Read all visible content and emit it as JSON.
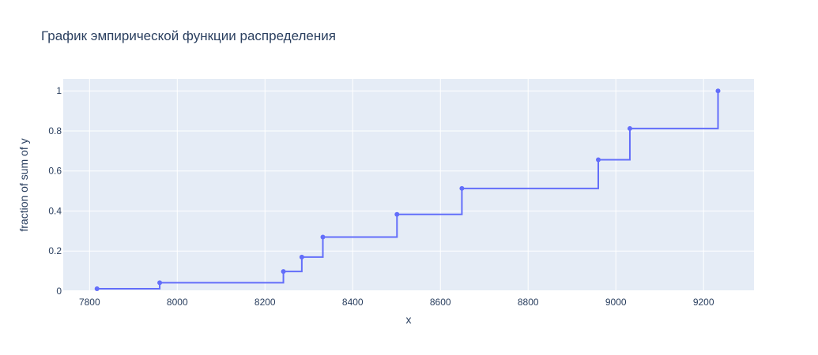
{
  "chart_data": {
    "type": "line",
    "line_shape": "step-hv",
    "title": "График эмпирической функции распределения",
    "xlabel": "x",
    "ylabel": "fraction of sum of y",
    "xlim": [
      7740,
      9315
    ],
    "ylim": [
      0,
      1.06
    ],
    "xticks": [
      7800,
      8000,
      8200,
      8400,
      8600,
      8800,
      9000,
      9200
    ],
    "yticks": [
      0,
      0.2,
      0.4,
      0.6,
      0.8,
      1
    ],
    "ytick_labels": [
      "0",
      "0.2",
      "0.4",
      "0.6",
      "0.8",
      "1"
    ],
    "grid": true,
    "plot_background": "#e5ecf6",
    "grid_color": "#ffffff",
    "series": [
      {
        "color": "#636efa",
        "markers": true,
        "x": [
          7817,
          7960,
          8242,
          8284,
          8332,
          8501,
          8649,
          8960,
          9032,
          9233
        ],
        "y": [
          0.012,
          0.042,
          0.098,
          0.17,
          0.27,
          0.383,
          0.513,
          0.656,
          0.812,
          1.0
        ]
      }
    ]
  }
}
